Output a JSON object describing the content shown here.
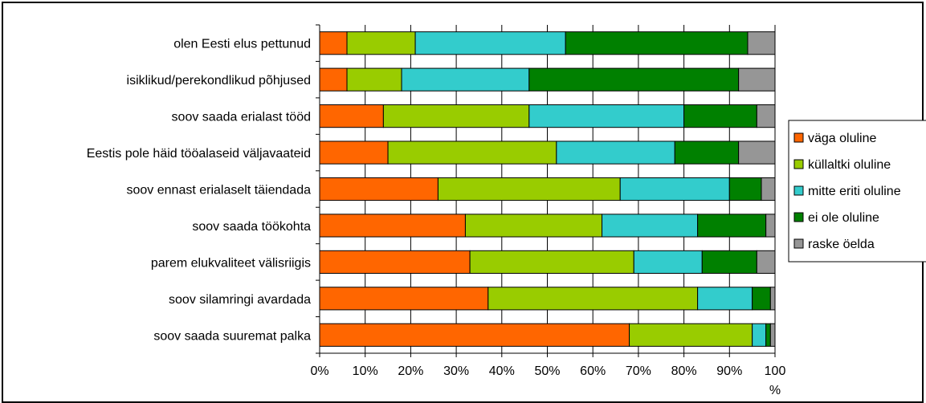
{
  "chart_data": {
    "type": "bar",
    "orientation": "horizontal",
    "stacked": "percent",
    "title": "",
    "xlabel": "",
    "ylabel": "",
    "xlim": [
      0,
      100
    ],
    "x_ticks": [
      "0%",
      "10%",
      "20%",
      "30%",
      "40%",
      "50%",
      "60%",
      "70%",
      "80%",
      "90%",
      "100 %"
    ],
    "grid": "vertical",
    "legend_position": "right",
    "categories": [
      "olen Eesti elus pettunud",
      "isiklikud/perekondlikud põhjused",
      "soov saada erialast tööd",
      "Eestis pole häid tööalaseid väljavaateid",
      "soov ennast erialaselt täiendada",
      "soov saada töökohta",
      "parem elukvaliteet välisriigis",
      "soov silamringi avardada",
      "soov saada suuremat palka"
    ],
    "series": [
      {
        "name": "väga oluline",
        "color": "#FF6600",
        "values": [
          6,
          6,
          14,
          15,
          26,
          32,
          33,
          37,
          68
        ]
      },
      {
        "name": "küllaltki oluline",
        "color": "#99CC00",
        "values": [
          15,
          12,
          32,
          37,
          40,
          30,
          36,
          46,
          27
        ]
      },
      {
        "name": "mitte eriti oluline",
        "color": "#33CCCC",
        "values": [
          33,
          28,
          34,
          26,
          24,
          21,
          15,
          12,
          3
        ]
      },
      {
        "name": "ei ole oluline",
        "color": "#008000",
        "values": [
          40,
          46,
          16,
          14,
          7,
          15,
          12,
          4,
          1
        ]
      },
      {
        "name": "raske öelda",
        "color": "#969696",
        "values": [
          6,
          8,
          4,
          8,
          3,
          2,
          4,
          1,
          1
        ]
      }
    ]
  }
}
